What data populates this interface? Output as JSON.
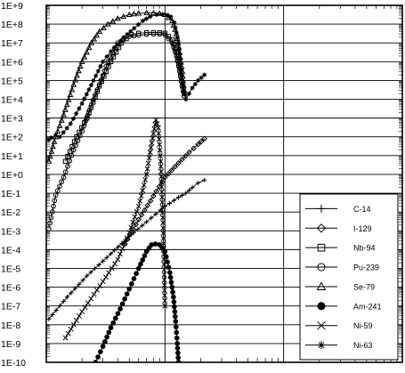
{
  "chart_data": {
    "type": "line",
    "title": "",
    "xlabel": "",
    "ylabel": "",
    "x_scale": "log",
    "y_scale": "log",
    "ylim": [
      1e-10,
      1000000000.0
    ],
    "y_tick_labels": [
      "1E-10",
      "1E-9",
      "1E-8",
      "1E-7",
      "1E-6",
      "1E-5",
      "1E-4",
      "1E-3",
      "1E-2",
      "1E-1",
      "1E+0",
      "1E+1",
      "1E+2",
      "1E+3",
      "1E+4",
      "1E+5",
      "1E+6",
      "1E+7",
      "1E+8",
      "1E+9"
    ],
    "x_tick_labels": [],
    "grid": true,
    "legend_position": "lower-right",
    "series": [
      {
        "name": "C-14",
        "marker": "plus",
        "marker_color": "#000000",
        "x": [
          1.05,
          1.5,
          2.2,
          3.5,
          5,
          7,
          10,
          13,
          15,
          17,
          19,
          21.5
        ],
        "y": [
          2e-08,
          3e-07,
          4e-06,
          6e-05,
          0.0005,
          0.003,
          0.02,
          0.06,
          0.1,
          0.2,
          0.35,
          0.5
        ]
      },
      {
        "name": "I-129",
        "marker": "diamond",
        "marker_color": "#000000",
        "x": [
          4.6,
          6,
          8,
          10,
          13,
          16,
          19,
          21.5
        ],
        "y": [
          0.0002,
          0.004,
          0.07,
          0.7,
          4,
          15,
          40,
          80
        ]
      },
      {
        "name": "Nb-94",
        "marker": "square",
        "marker_color": "#000000",
        "x": [
          1.45,
          1.8,
          2.2,
          2.8,
          3.5,
          4.3,
          5.2,
          6,
          7,
          8,
          9,
          10,
          11.5,
          12.5,
          13.3,
          14,
          14.5
        ],
        "y": [
          5,
          100,
          1000,
          50000,
          1000000,
          10000000,
          28000000,
          33000000,
          35000000,
          36000000,
          35000000,
          33000000,
          15000000,
          3000000,
          400000,
          50000,
          20000
        ]
      },
      {
        "name": "Pu-239",
        "marker": "circle",
        "marker_color": "#000000",
        "x": [
          1.05,
          1.2,
          1.4,
          1.7,
          2,
          2.4,
          2.8,
          3.3,
          4,
          5,
          6,
          7,
          8,
          9,
          10,
          11.5,
          12.5,
          13.3,
          14,
          14.5
        ],
        "y": [
          0.0013,
          0.08,
          0.7,
          20,
          200,
          5000,
          60000,
          1000000,
          10000000,
          22000000,
          26000000,
          28000000,
          29000000,
          29000000,
          27000000,
          10000000,
          2000000,
          300000,
          50000,
          15000
        ]
      },
      {
        "name": "Se-79",
        "marker": "triangle",
        "marker_color": "#000000",
        "x": [
          1.05,
          1.2,
          1.4,
          1.7,
          2,
          2.4,
          2.8,
          3.3,
          4,
          5,
          6,
          7,
          8,
          9,
          10,
          11.5,
          12.5,
          13.3,
          14,
          14.5
        ],
        "y": [
          5,
          100,
          1500,
          60000,
          1000000,
          10000000,
          40000000,
          100000000,
          200000000,
          320000000,
          380000000,
          400000000,
          390000000,
          370000000,
          320000000,
          150000000,
          30000000,
          3000000,
          300000,
          30000
        ]
      },
      {
        "name": "Am-241",
        "marker": "filled-circle",
        "marker_color": "#000000",
        "x": [
          2.6,
          3,
          3.5,
          4.2,
          5,
          6,
          7,
          7.7,
          8.3,
          9,
          10,
          11,
          11.8,
          12.3,
          12.7,
          13
        ],
        "y": [
          1e-10,
          7e-10,
          7e-09,
          7e-08,
          8e-07,
          1e-05,
          8e-05,
          0.00018,
          0.0002,
          0.00018,
          8e-05,
          6e-06,
          3e-07,
          1.5e-08,
          1e-09,
          1e-10
        ]
      },
      {
        "name": "Ni-59",
        "marker": "x",
        "marker_color": "#000000",
        "x": [
          1.45,
          2,
          3,
          4,
          5,
          6,
          7,
          7.5,
          8,
          8.4,
          8.8,
          9.2,
          9.6,
          10
        ],
        "y": [
          2e-09,
          5e-08,
          2e-06,
          3e-05,
          0.0008,
          0.02,
          1,
          15,
          150,
          800,
          300,
          5,
          0.005,
          1e-07
        ]
      },
      {
        "name": "Ni-63",
        "marker": "asterisk",
        "marker_color": "#000000",
        "x": [
          1.05,
          1.1,
          1.2,
          1.3,
          1.6,
          2,
          2.5,
          3,
          3.5,
          4.5,
          5.5,
          6.5,
          7.5,
          8.5,
          9.5,
          10.5,
          11.2,
          12,
          13,
          14,
          15,
          17,
          19,
          21.5
        ],
        "y": [
          70,
          90,
          120,
          100,
          500,
          6000,
          100000,
          1000000,
          3500000,
          20000000,
          60000000,
          150000000,
          250000000,
          320000000,
          330000000,
          300000000,
          250000000,
          120000000,
          10000000,
          100000,
          10000,
          40000,
          100000,
          200000
        ]
      }
    ]
  }
}
